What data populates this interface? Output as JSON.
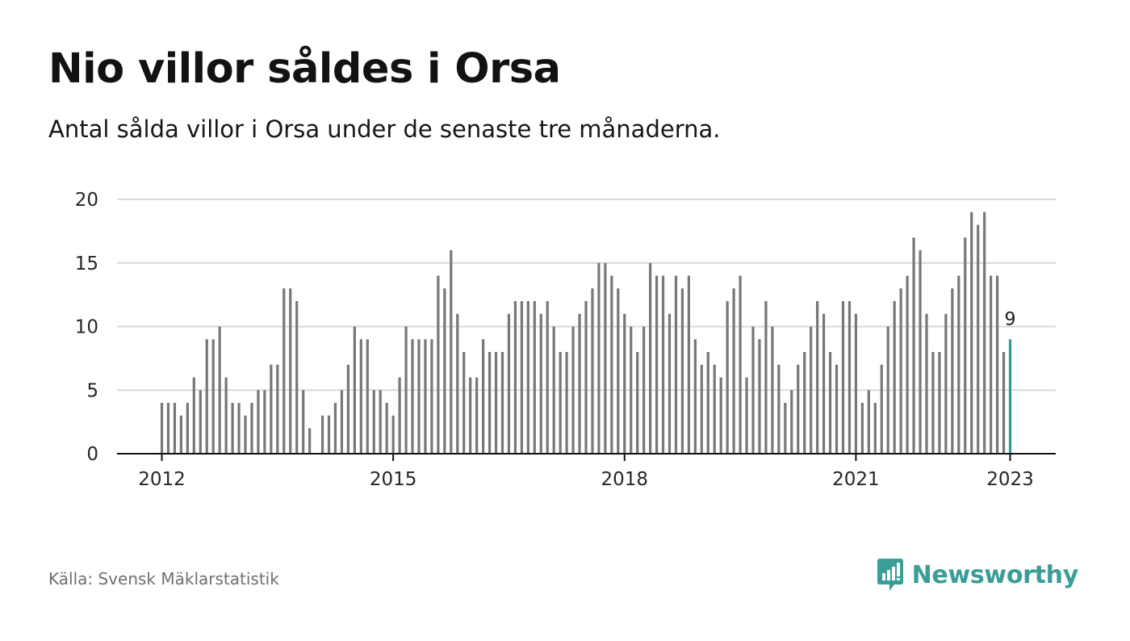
{
  "title": "Nio villor såldes i Orsa",
  "subtitle": "Antal sålda villor i Orsa under de senaste tre månaderna.",
  "source": "Källa: Svensk Mäklarstatistik",
  "brand": {
    "name": "Newsworthy",
    "icon": "newsworthy-logo-icon"
  },
  "colors": {
    "bar": "#77777b",
    "highlight": "#2f9e96",
    "grid": "#d9d9d9",
    "axis": "#111111",
    "brand": "#3a9e97"
  },
  "chart_data": {
    "type": "bar",
    "title": "",
    "xlabel": "",
    "ylabel": "",
    "ylim": [
      0,
      20
    ],
    "y_ticks": [
      "0",
      "5",
      "10",
      "15",
      "20"
    ],
    "x_ticks": [
      "2012",
      "2015",
      "2018",
      "2021",
      "2023"
    ],
    "grid": true,
    "highlight_last": true,
    "last_value_label": "9",
    "values": [
      4,
      4,
      4,
      3,
      4,
      6,
      5,
      9,
      9,
      10,
      6,
      4,
      4,
      3,
      4,
      5,
      5,
      7,
      7,
      13,
      13,
      12,
      5,
      2,
      0,
      3,
      3,
      4,
      5,
      7,
      10,
      9,
      9,
      5,
      5,
      4,
      3,
      6,
      10,
      9,
      9,
      9,
      9,
      14,
      13,
      16,
      11,
      8,
      6,
      6,
      9,
      8,
      8,
      8,
      11,
      12,
      12,
      12,
      12,
      11,
      12,
      10,
      8,
      8,
      10,
      11,
      12,
      13,
      15,
      15,
      14,
      13,
      11,
      10,
      8,
      10,
      15,
      14,
      14,
      11,
      14,
      13,
      14,
      9,
      7,
      8,
      7,
      6,
      12,
      13,
      14,
      6,
      10,
      9,
      12,
      10,
      7,
      4,
      5,
      7,
      8,
      10,
      12,
      11,
      8,
      7,
      12,
      12,
      11,
      4,
      5,
      4,
      7,
      10,
      12,
      13,
      14,
      17,
      16,
      11,
      8,
      8,
      11,
      13,
      14,
      17,
      19,
      18,
      19,
      14,
      14,
      8,
      9
    ]
  }
}
